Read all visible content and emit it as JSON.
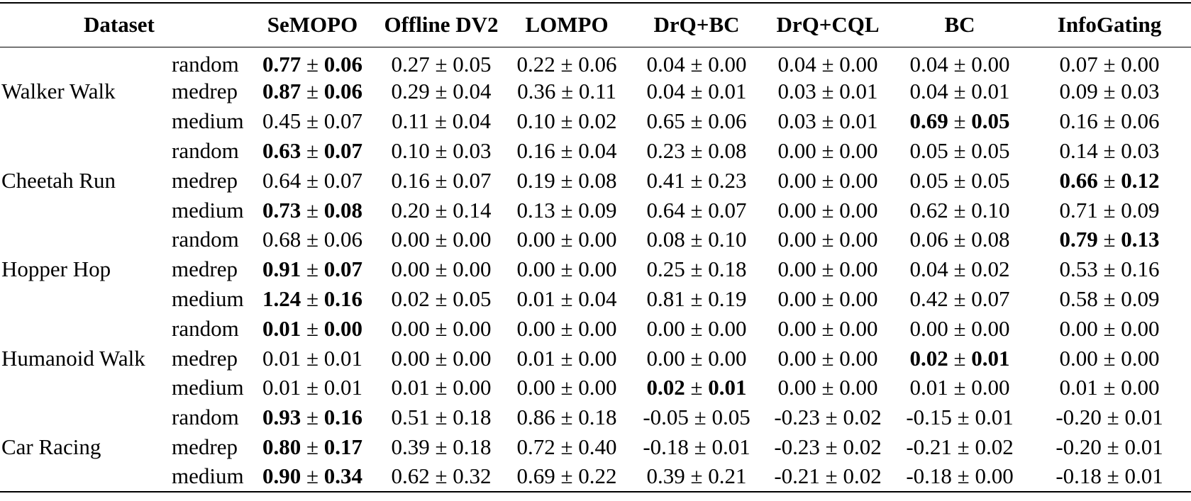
{
  "header": {
    "dataset": "Dataset",
    "methods": [
      "SeMOPO",
      "Offline DV2",
      "LOMPO",
      "DrQ+BC",
      "DrQ+CQL",
      "BC",
      "InfoGating"
    ]
  },
  "groups": [
    {
      "name": "Walker Walk",
      "rows": [
        {
          "split": "random",
          "values": [
            [
              "0.77",
              "0.06",
              true
            ],
            [
              "0.27",
              "0.05",
              false
            ],
            [
              "0.22",
              "0.06",
              false
            ],
            [
              "0.04",
              "0.00",
              false
            ],
            [
              "0.04",
              "0.00",
              false
            ],
            [
              "0.04",
              "0.00",
              false
            ],
            [
              "0.07",
              "0.00",
              false
            ]
          ]
        },
        {
          "split": "medrep",
          "values": [
            [
              "0.87",
              "0.06",
              true
            ],
            [
              "0.29",
              "0.04",
              false
            ],
            [
              "0.36",
              "0.11",
              false
            ],
            [
              "0.04",
              "0.01",
              false
            ],
            [
              "0.03",
              "0.01",
              false
            ],
            [
              "0.04",
              "0.01",
              false
            ],
            [
              "0.09",
              "0.03",
              false
            ]
          ]
        },
        {
          "split": "medium",
          "values": [
            [
              "0.45",
              "0.07",
              false
            ],
            [
              "0.11",
              "0.04",
              false
            ],
            [
              "0.10",
              "0.02",
              false
            ],
            [
              "0.65",
              "0.06",
              false
            ],
            [
              "0.03",
              "0.01",
              false
            ],
            [
              "0.69",
              "0.05",
              true
            ],
            [
              "0.16",
              "0.06",
              false
            ]
          ]
        }
      ]
    },
    {
      "name": "Cheetah Run",
      "rows": [
        {
          "split": "random",
          "values": [
            [
              "0.63",
              "0.07",
              true
            ],
            [
              "0.10",
              "0.03",
              false
            ],
            [
              "0.16",
              "0.04",
              false
            ],
            [
              "0.23",
              "0.08",
              false
            ],
            [
              "0.00",
              "0.00",
              false
            ],
            [
              "0.05",
              "0.05",
              false
            ],
            [
              "0.14",
              "0.03",
              false
            ]
          ]
        },
        {
          "split": "medrep",
          "values": [
            [
              "0.64",
              "0.07",
              false
            ],
            [
              "0.16",
              "0.07",
              false
            ],
            [
              "0.19",
              "0.08",
              false
            ],
            [
              "0.41",
              "0.23",
              false
            ],
            [
              "0.00",
              "0.00",
              false
            ],
            [
              "0.05",
              "0.05",
              false
            ],
            [
              "0.66",
              "0.12",
              true
            ]
          ]
        },
        {
          "split": "medium",
          "values": [
            [
              "0.73",
              "0.08",
              true
            ],
            [
              "0.20",
              "0.14",
              false
            ],
            [
              "0.13",
              "0.09",
              false
            ],
            [
              "0.64",
              "0.07",
              false
            ],
            [
              "0.00",
              "0.00",
              false
            ],
            [
              "0.62",
              "0.10",
              false
            ],
            [
              "0.71",
              "0.09",
              false
            ]
          ]
        }
      ]
    },
    {
      "name": "Hopper Hop",
      "rows": [
        {
          "split": "random",
          "values": [
            [
              "0.68",
              "0.06",
              false
            ],
            [
              "0.00",
              "0.00",
              false
            ],
            [
              "0.00",
              "0.00",
              false
            ],
            [
              "0.08",
              "0.10",
              false
            ],
            [
              "0.00",
              "0.00",
              false
            ],
            [
              "0.06",
              "0.08",
              false
            ],
            [
              "0.79",
              "0.13",
              true
            ]
          ]
        },
        {
          "split": "medrep",
          "values": [
            [
              "0.91",
              "0.07",
              true
            ],
            [
              "0.00",
              "0.00",
              false
            ],
            [
              "0.00",
              "0.00",
              false
            ],
            [
              "0.25",
              "0.18",
              false
            ],
            [
              "0.00",
              "0.00",
              false
            ],
            [
              "0.04",
              "0.02",
              false
            ],
            [
              "0.53",
              "0.16",
              false
            ]
          ]
        },
        {
          "split": "medium",
          "values": [
            [
              "1.24",
              "0.16",
              true
            ],
            [
              "0.02",
              "0.05",
              false
            ],
            [
              "0.01",
              "0.04",
              false
            ],
            [
              "0.81",
              "0.19",
              false
            ],
            [
              "0.00",
              "0.00",
              false
            ],
            [
              "0.42",
              "0.07",
              false
            ],
            [
              "0.58",
              "0.09",
              false
            ]
          ]
        }
      ]
    },
    {
      "name": "Humanoid Walk",
      "rows": [
        {
          "split": "random",
          "values": [
            [
              "0.01",
              "0.00",
              true
            ],
            [
              "0.00",
              "0.00",
              false
            ],
            [
              "0.00",
              "0.00",
              false
            ],
            [
              "0.00",
              "0.00",
              false
            ],
            [
              "0.00",
              "0.00",
              false
            ],
            [
              "0.00",
              "0.00",
              false
            ],
            [
              "0.00",
              "0.00",
              false
            ]
          ]
        },
        {
          "split": "medrep",
          "values": [
            [
              "0.01",
              "0.01",
              false
            ],
            [
              "0.00",
              "0.00",
              false
            ],
            [
              "0.01",
              "0.00",
              false
            ],
            [
              "0.00",
              "0.00",
              false
            ],
            [
              "0.00",
              "0.00",
              false
            ],
            [
              "0.02",
              "0.01",
              true
            ],
            [
              "0.00",
              "0.00",
              false
            ]
          ]
        },
        {
          "split": "medium",
          "values": [
            [
              "0.01",
              "0.01",
              false
            ],
            [
              "0.01",
              "0.00",
              false
            ],
            [
              "0.00",
              "0.00",
              false
            ],
            [
              "0.02",
              "0.01",
              true
            ],
            [
              "0.00",
              "0.00",
              false
            ],
            [
              "0.01",
              "0.00",
              false
            ],
            [
              "0.01",
              "0.00",
              false
            ]
          ]
        }
      ]
    },
    {
      "name": "Car Racing",
      "rows": [
        {
          "split": "random",
          "values": [
            [
              "0.93",
              "0.16",
              true
            ],
            [
              "0.51",
              "0.18",
              false
            ],
            [
              "0.86",
              "0.18",
              false
            ],
            [
              "-0.05",
              "0.05",
              false
            ],
            [
              "-0.23",
              "0.02",
              false
            ],
            [
              "-0.15",
              "0.01",
              false
            ],
            [
              "-0.20",
              "0.01",
              false
            ]
          ]
        },
        {
          "split": "medrep",
          "values": [
            [
              "0.80",
              "0.17",
              true
            ],
            [
              "0.39",
              "0.18",
              false
            ],
            [
              "0.72",
              "0.40",
              false
            ],
            [
              "-0.18",
              "0.01",
              false
            ],
            [
              "-0.23",
              "0.02",
              false
            ],
            [
              "-0.21",
              "0.02",
              false
            ],
            [
              "-0.20",
              "0.01",
              false
            ]
          ]
        },
        {
          "split": "medium",
          "values": [
            [
              "0.90",
              "0.34",
              true
            ],
            [
              "0.62",
              "0.32",
              false
            ],
            [
              "0.69",
              "0.22",
              false
            ],
            [
              "0.39",
              "0.21",
              false
            ],
            [
              "-0.21",
              "0.02",
              false
            ],
            [
              "-0.18",
              "0.00",
              false
            ],
            [
              "-0.18",
              "0.01",
              false
            ]
          ]
        }
      ]
    }
  ],
  "symbols": {
    "pm": "±"
  }
}
